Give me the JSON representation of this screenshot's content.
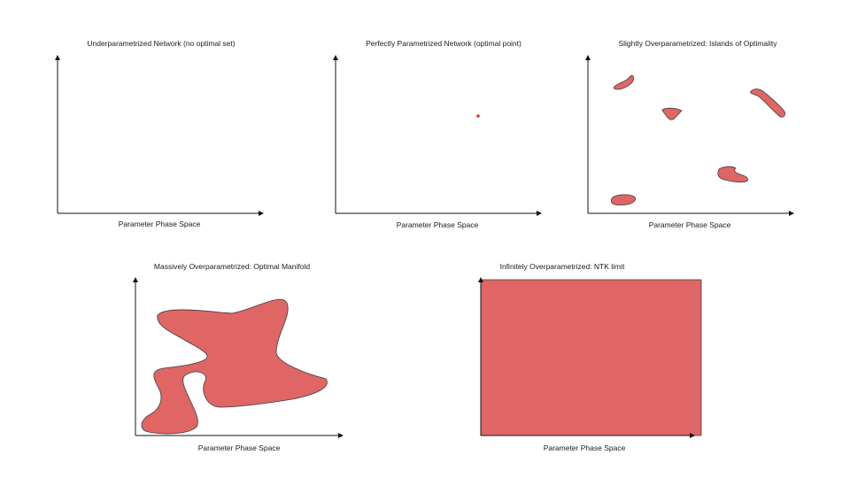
{
  "panels": [
    {
      "title": "Underparametrized Network (no optimal set)",
      "xlabel": "Parameter Phase Space",
      "regions": []
    },
    {
      "title": "Perfectly Parametrized Network (optimal point)",
      "xlabel": "Parameter Phase Space",
      "regions": [
        "optimal-point"
      ]
    },
    {
      "title": "Slightly Overparametrized: Islands of Optimality",
      "xlabel": "Parameter Phase Space",
      "regions": [
        "island",
        "island",
        "island",
        "island",
        "island"
      ]
    },
    {
      "title": "Massively Overparametrized: Optimal Manifold",
      "xlabel": "Parameter Phase Space",
      "regions": [
        "optimal-manifold"
      ]
    },
    {
      "title": "Infinitely Overparametrized: NTK limit",
      "xlabel": "Parameter Phase Space",
      "regions": [
        "full-space"
      ]
    }
  ],
  "colors": {
    "region_fill": "#e06666",
    "region_stroke": "#3a3a3a",
    "axis": "#111111",
    "text": "#1a1a1a"
  }
}
